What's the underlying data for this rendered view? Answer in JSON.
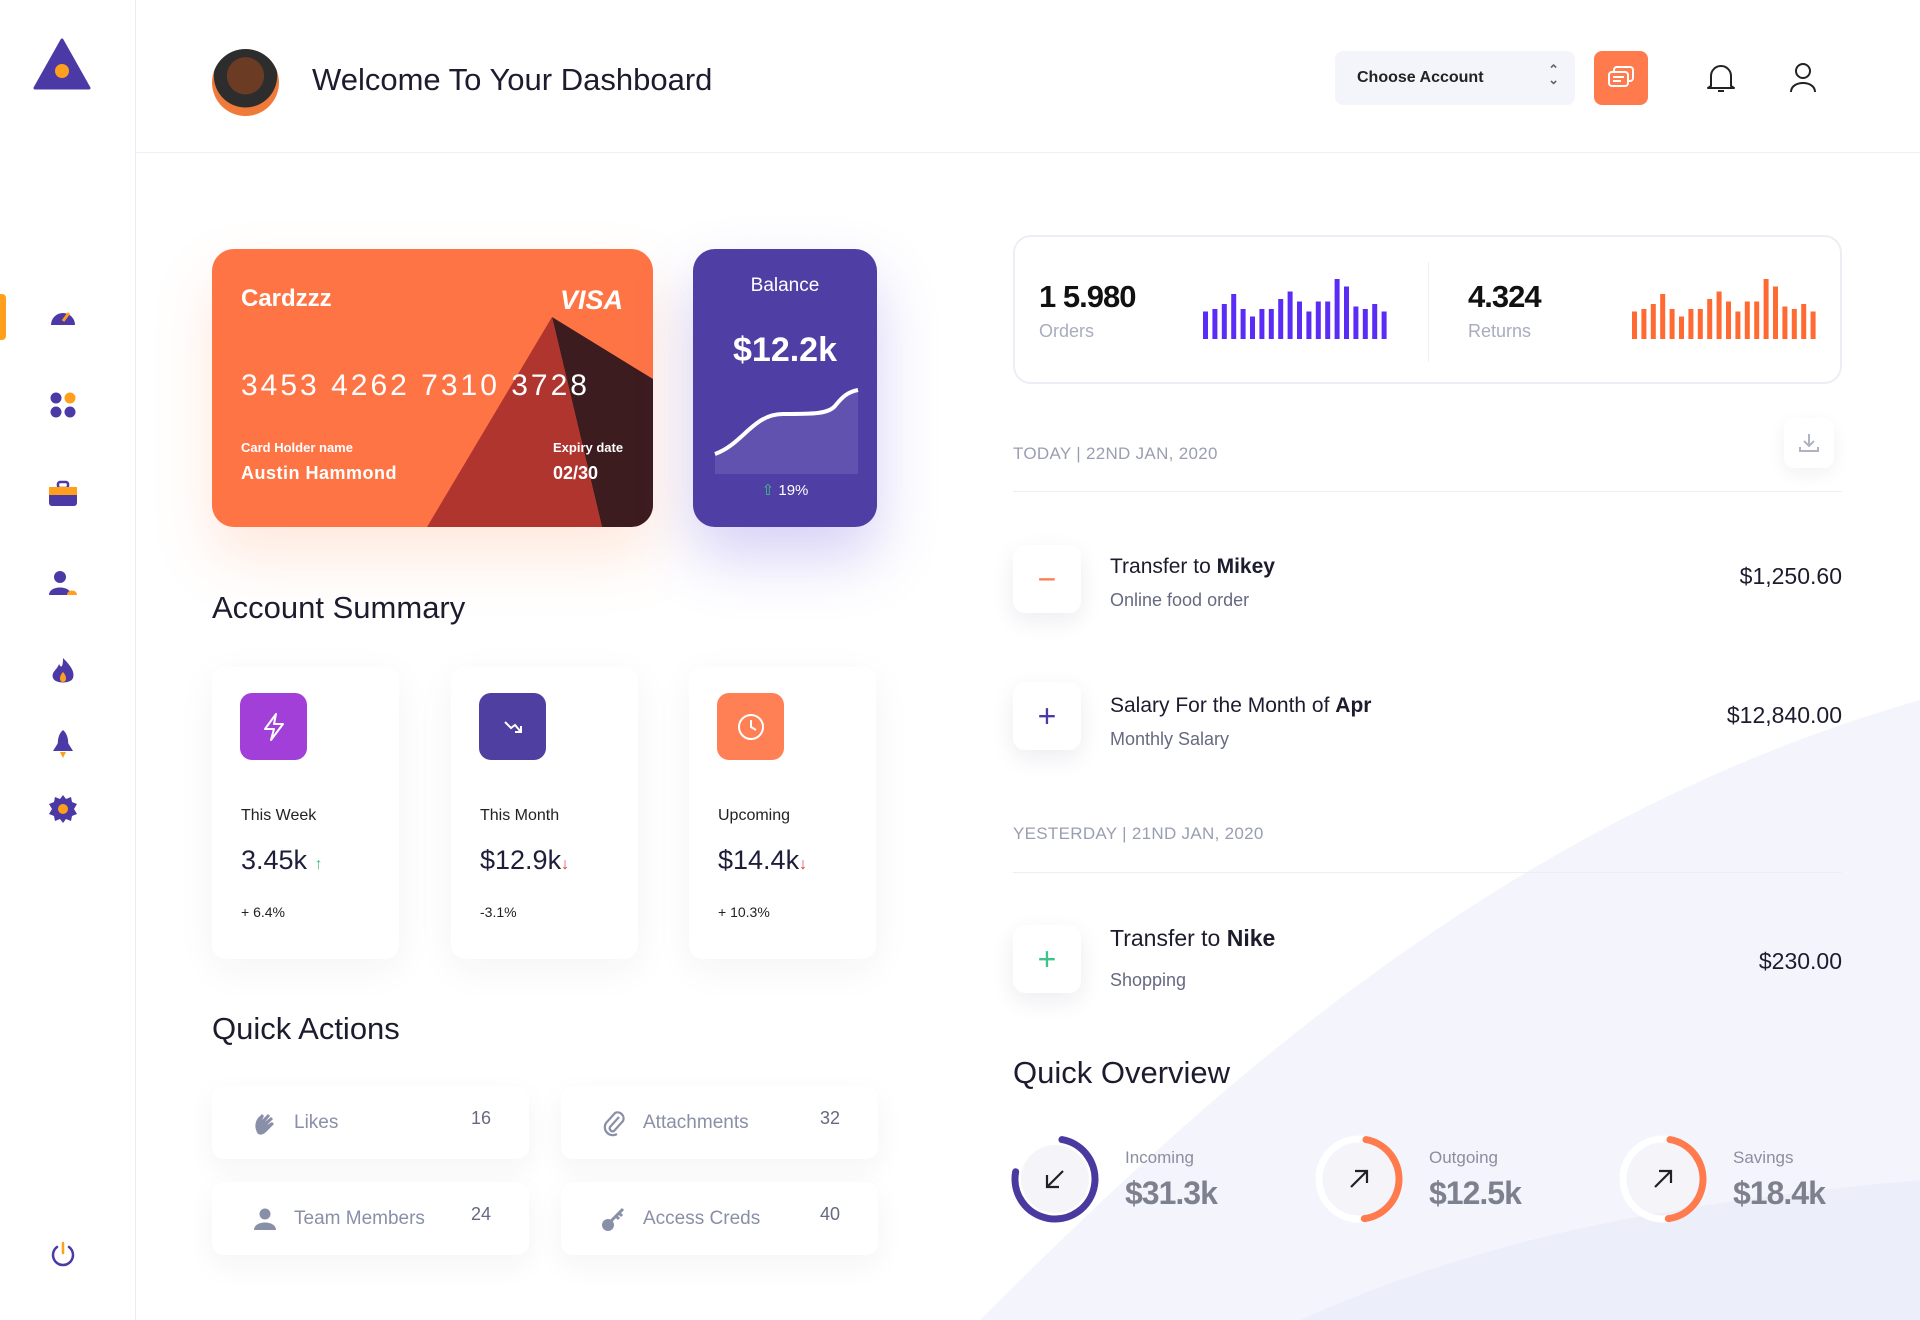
{
  "header": {
    "title": "Welcome To Your Dashboard",
    "account_select": "Choose Account"
  },
  "sidebar": {
    "items": [
      "dashboard-icon",
      "apps-icon",
      "briefcase-icon",
      "users-icon",
      "fire-icon",
      "rocket-icon",
      "settings-icon"
    ],
    "active": "dashboard-icon",
    "logout": "power-icon"
  },
  "card": {
    "brand": "Cardzzz",
    "network": "VISA",
    "number": "3453 4262 7310 3728",
    "holder_label": "Card Holder name",
    "holder": "Austin Hammond",
    "expiry_label": "Expiry date",
    "expiry": "02/30"
  },
  "balance": {
    "label": "Balance",
    "value": "$12.2k",
    "change": "19%"
  },
  "account_summary": {
    "title": "Account Summary",
    "items": [
      {
        "label": "This Week",
        "value": "3.45k",
        "trend": "up",
        "change": "+ 6.4%",
        "color": "#a23fd8"
      },
      {
        "label": "This Month",
        "value": "$12.9k",
        "trend": "down",
        "change": "-3.1%",
        "color": "#4e3fa0"
      },
      {
        "label": "Upcoming",
        "value": "$14.4k",
        "trend": "down",
        "change": "+ 10.3%",
        "color": "#ff8055"
      }
    ]
  },
  "quick_actions": {
    "title": "Quick Actions",
    "items": [
      {
        "label": "Likes",
        "count": "16",
        "icon": "clap-icon"
      },
      {
        "label": "Attachments",
        "count": "32",
        "icon": "paperclip-icon"
      },
      {
        "label": "Team Members",
        "count": "24",
        "icon": "user-icon"
      },
      {
        "label": "Access Creds",
        "count": "40",
        "icon": "key-icon"
      }
    ]
  },
  "stats": {
    "orders": {
      "value": "1 5.980",
      "label": "Orders",
      "color": "#5b2cf5",
      "bars": [
        55,
        60,
        70,
        90,
        60,
        45,
        60,
        60,
        80,
        95,
        75,
        55,
        75,
        75,
        120,
        105,
        65,
        60,
        70,
        55
      ]
    },
    "returns": {
      "value": "4.324",
      "label": "Returns",
      "color": "#ff6a33",
      "bars": [
        55,
        60,
        70,
        90,
        60,
        45,
        60,
        60,
        80,
        95,
        75,
        55,
        75,
        75,
        120,
        105,
        65,
        60,
        70,
        55
      ]
    }
  },
  "transactions": {
    "today_label": "TODAY | 22ND JAN, 2020",
    "yesterday_label": "YESTERDAY | 21ND JAN, 2020",
    "items": [
      {
        "prefix": "Transfer to ",
        "bold": "Mikey",
        "sub": "Online food order",
        "amount": "$1,250.60",
        "sign": "−"
      },
      {
        "prefix": "Salary For the Month of ",
        "bold": "Apr",
        "sub": "Monthly Salary",
        "amount": "$12,840.00",
        "sign": "+"
      },
      {
        "prefix": "Transfer to ",
        "bold": "Nike",
        "sub": "Shopping",
        "amount": "$230.00",
        "sign": "+"
      }
    ]
  },
  "quick_overview": {
    "title": "Quick Overview",
    "items": [
      {
        "label": "Incoming",
        "value": "$31.3k",
        "progress": 0.75,
        "color": "#4a3aa0"
      },
      {
        "label": "Outgoing",
        "value": "$12.5k",
        "progress": 0.45,
        "color": "#ff7a4d"
      },
      {
        "label": "Savings",
        "value": "$18.4k",
        "progress": 0.45,
        "color": "#ff7a4d"
      }
    ]
  }
}
